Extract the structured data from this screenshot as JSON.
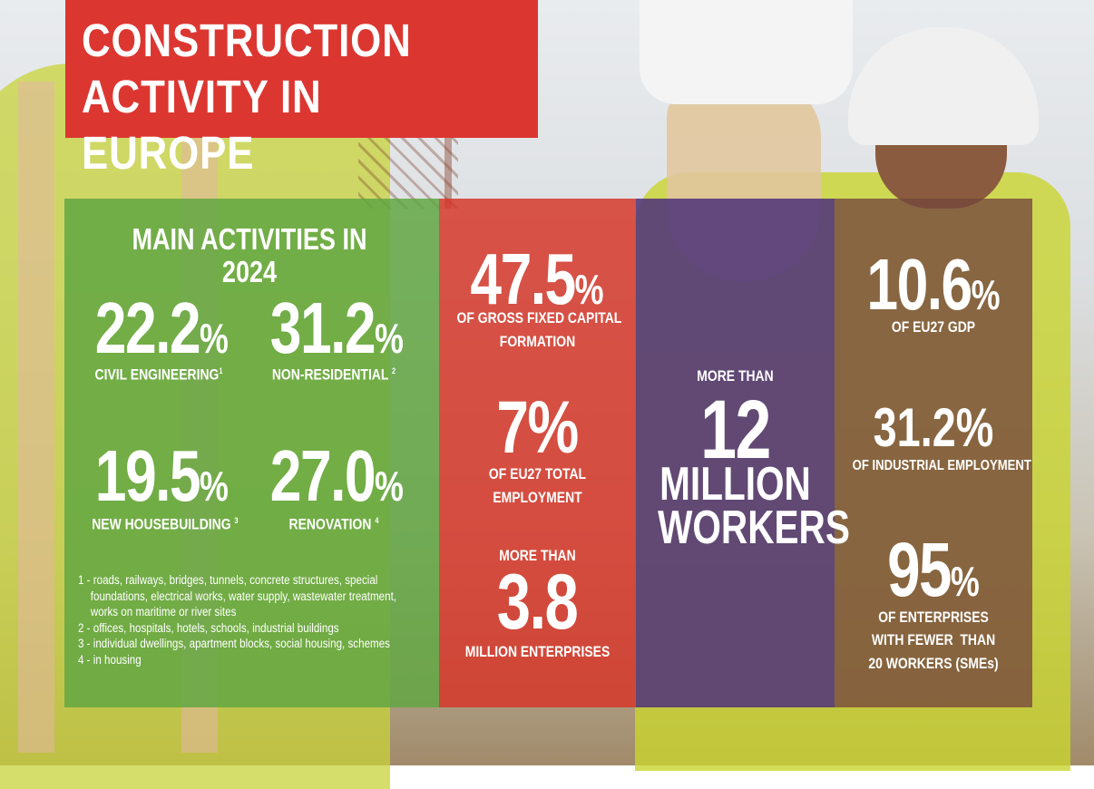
{
  "title": "CONSTRUCTION\nACTIVITY IN EUROPE",
  "main_activities": {
    "heading": "MAIN ACTIVITIES IN 2024",
    "items": [
      {
        "value": "22.2",
        "unit": "%",
        "label": "CIVIL ENGINEERING",
        "note": "1"
      },
      {
        "value": "31.2",
        "unit": "%",
        "label": "NON-RESIDENTIAL",
        "note": "2"
      },
      {
        "value": "19.5",
        "unit": "%",
        "label": "NEW HOUSEBUILDING",
        "note": "3"
      },
      {
        "value": "27.0",
        "unit": "%",
        "label": "RENOVATION",
        "note": "4"
      }
    ],
    "footnotes": [
      [
        "1 - roads, railways, bridges, tunnels, concrete structures, special",
        "foundations, electrical works, water supply, wastewater treatment,",
        "works on maritime or river sites"
      ],
      [
        "2 - offices, hospitals, hotels, schools, industrial buildings"
      ],
      [
        "3 - individual dwellings, apartment blocks, social housing, schemes"
      ],
      [
        "4 - in housing"
      ]
    ]
  },
  "red_panel": {
    "gfcf": {
      "value": "47.5",
      "unit": "%",
      "label_1": "OF GROSS FIXED CAPITAL",
      "label_2": "FORMATION"
    },
    "employment": {
      "value": "7",
      "unit": "%",
      "label_1": "OF EU27 TOTAL",
      "label_2": "EMPLOYMENT"
    },
    "enterprises": {
      "prefix": "MORE THAN",
      "value": "3.8",
      "label": "MILLION ENTERPRISES"
    }
  },
  "purple_panel": {
    "prefix": "MORE THAN",
    "value": "12",
    "line_1": "MILLION",
    "line_2": "WORKERS"
  },
  "brown_panel": {
    "gdp": {
      "value": "10.6",
      "unit": "%",
      "label": "OF EU27 GDP"
    },
    "industrial": {
      "value": "31.2",
      "unit": "%",
      "label": "OF INDUSTRIAL EMPLOYMENT"
    },
    "sme": {
      "value": "95",
      "unit": "%",
      "label_1": "OF ENTERPRISES",
      "label_2": "WITH FEWER  THAN",
      "label_3": "20 WORKERS (SMEs)"
    }
  },
  "colors": {
    "title_red": "#dc3631",
    "panel_green": "#60a641",
    "panel_red": "#d53629",
    "panel_purple": "#52357a",
    "panel_brown": "#74463e"
  }
}
